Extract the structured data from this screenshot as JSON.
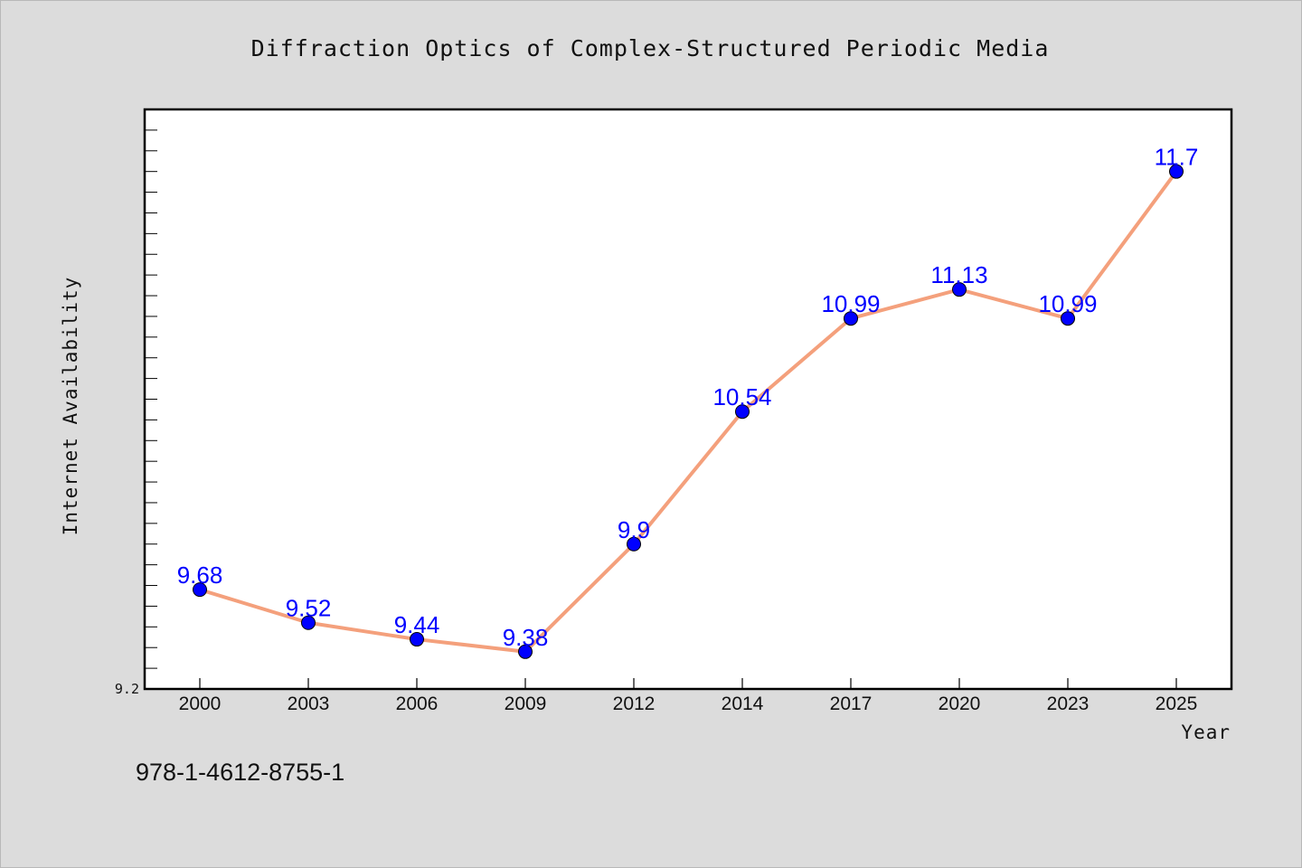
{
  "chart_data": {
    "type": "line",
    "title": "Diffraction Optics of Complex-Structured Periodic Media",
    "xlabel": "Year",
    "ylabel": "Internet Availability",
    "categories": [
      "2000",
      "2003",
      "2006",
      "2009",
      "2012",
      "2014",
      "2017",
      "2020",
      "2023",
      "2025"
    ],
    "values": [
      9.68,
      9.52,
      9.44,
      9.38,
      9.9,
      10.54,
      10.99,
      11.13,
      10.99,
      11.7
    ],
    "data_labels": [
      "9.68",
      "9.52",
      "9.44",
      "9.38",
      "9.9",
      "10.54",
      "10.99",
      "11.13",
      "10.99",
      "11.7"
    ],
    "ylim": [
      9.2,
      12.0
    ],
    "y_tick_label": "9.2",
    "grid": false,
    "legend": "none",
    "colors": {
      "line": "#f4a07c",
      "marker": "#0000ff",
      "label": "#0000ff",
      "background": "#dcdcdc",
      "plot_background": "#ffffff"
    }
  },
  "footer": {
    "isbn": "978-1-4612-8755-1"
  }
}
